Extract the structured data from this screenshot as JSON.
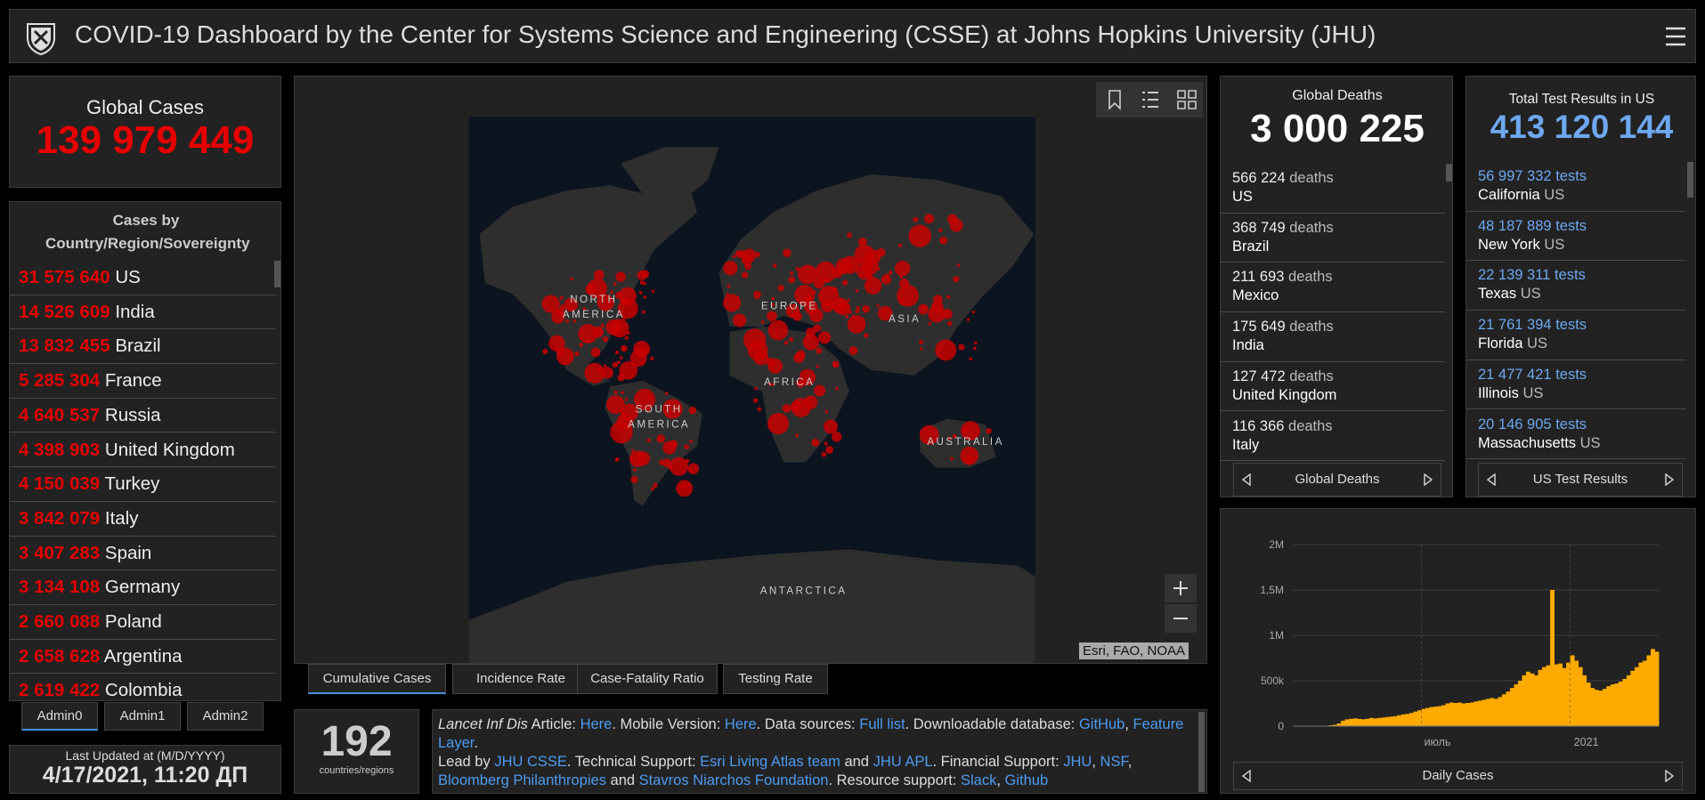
{
  "header": {
    "title": "COVID-19 Dashboard by the Center for Systems Science and Engineering (CSSE) at Johns Hopkins University (JHU)"
  },
  "global_cases": {
    "label": "Global Cases",
    "value": "139 979 449"
  },
  "cases_by_country": {
    "title": "Cases by Country/Region/Sovereignty",
    "rows": [
      {
        "value": "31 575 640",
        "name": "US"
      },
      {
        "value": "14 526 609",
        "name": "India"
      },
      {
        "value": "13 832 455",
        "name": "Brazil"
      },
      {
        "value": "5 285 304",
        "name": "France"
      },
      {
        "value": "4 640 537",
        "name": "Russia"
      },
      {
        "value": "4 398 903",
        "name": "United Kingdom"
      },
      {
        "value": "4 150 039",
        "name": "Turkey"
      },
      {
        "value": "3 842 079",
        "name": "Italy"
      },
      {
        "value": "3 407 283",
        "name": "Spain"
      },
      {
        "value": "3 134 108",
        "name": "Germany"
      },
      {
        "value": "2 660 088",
        "name": "Poland"
      },
      {
        "value": "2 658 628",
        "name": "Argentina"
      },
      {
        "value": "2 619 422",
        "name": "Colombia"
      }
    ]
  },
  "admin_tabs": [
    "Admin0",
    "Admin1",
    "Admin2"
  ],
  "last_updated": {
    "label": "Last Updated at (M/D/YYYY)",
    "value": "4/17/2021, 11:20 ДП"
  },
  "map": {
    "labels": [
      {
        "lines": [
          "NORTH",
          "AMERICA"
        ],
        "x": 0,
        "y": 0
      },
      {
        "lines": [
          "EUROPE"
        ]
      },
      {
        "lines": [
          "ASIA"
        ]
      },
      {
        "lines": [
          "AFRICA"
        ]
      },
      {
        "lines": [
          "SOUTH",
          "AMERICA"
        ]
      },
      {
        "lines": [
          "AUSTRALIA"
        ]
      },
      {
        "lines": [
          "ANTARCTICA"
        ]
      }
    ],
    "attribution": "Esri, FAO, NOAA",
    "tabs": [
      "Cumulative Cases",
      "Incidence Rate",
      "Case-Fatality Ratio",
      "Testing Rate"
    ]
  },
  "count": {
    "value": "192",
    "label": "countries/regions"
  },
  "info": {
    "lines": [
      [
        {
          "kind": "italic",
          "text": "Lancet Inf Dis"
        },
        {
          "kind": "text",
          "text": " Article: "
        },
        {
          "kind": "link",
          "text": "Here"
        },
        {
          "kind": "text",
          "text": ". Mobile Version: "
        },
        {
          "kind": "link",
          "text": "Here"
        },
        {
          "kind": "text",
          "text": ". Data sources: "
        },
        {
          "kind": "link",
          "text": "Full list"
        },
        {
          "kind": "text",
          "text": ". Downloadable database: "
        },
        {
          "kind": "link",
          "text": "GitHub"
        },
        {
          "kind": "text",
          "text": ", "
        },
        {
          "kind": "link",
          "text": "Feature Layer"
        },
        {
          "kind": "text",
          "text": "."
        }
      ],
      [
        {
          "kind": "text",
          "text": "Lead by "
        },
        {
          "kind": "link",
          "text": "JHU CSSE"
        },
        {
          "kind": "text",
          "text": ". Technical Support: "
        },
        {
          "kind": "link",
          "text": "Esri Living Atlas team"
        },
        {
          "kind": "text",
          "text": " and "
        },
        {
          "kind": "link",
          "text": "JHU APL"
        },
        {
          "kind": "text",
          "text": ". Financial Support: "
        },
        {
          "kind": "link",
          "text": "JHU"
        },
        {
          "kind": "text",
          "text": ", "
        },
        {
          "kind": "link",
          "text": "NSF"
        },
        {
          "kind": "text",
          "text": ", "
        },
        {
          "kind": "link",
          "text": "Bloomberg Philanthropies"
        },
        {
          "kind": "text",
          "text": " and "
        },
        {
          "kind": "link",
          "text": "Stavros Niarchos Foundation"
        },
        {
          "kind": "text",
          "text": ". Resource support: "
        },
        {
          "kind": "link",
          "text": "Slack"
        },
        {
          "kind": "text",
          "text": ", "
        },
        {
          "kind": "link",
          "text": "Github"
        }
      ]
    ]
  },
  "global_deaths": {
    "title": "Global Deaths",
    "value": "3 000 225",
    "rows": [
      {
        "value": "566 224",
        "unit": "deaths",
        "name": "US"
      },
      {
        "value": "368 749",
        "unit": "deaths",
        "name": "Brazil"
      },
      {
        "value": "211 693",
        "unit": "deaths",
        "name": "Mexico"
      },
      {
        "value": "175 649",
        "unit": "deaths",
        "name": "India"
      },
      {
        "value": "127 472",
        "unit": "deaths",
        "name": "United Kingdom"
      },
      {
        "value": "116 366",
        "unit": "deaths",
        "name": "Italy"
      }
    ],
    "nav": "Global Deaths"
  },
  "us_tests": {
    "title": "Total Test Results in US",
    "value": "413 120 144",
    "rows": [
      {
        "value": "56 997 332",
        "unit": "tests",
        "name": "California",
        "region": "US"
      },
      {
        "value": "48 187 889",
        "unit": "tests",
        "name": "New York",
        "region": "US"
      },
      {
        "value": "22 139 311",
        "unit": "tests",
        "name": "Texas",
        "region": "US"
      },
      {
        "value": "21 761 394",
        "unit": "tests",
        "name": "Florida",
        "region": "US"
      },
      {
        "value": "21 477 421",
        "unit": "tests",
        "name": "Illinois",
        "region": "US"
      },
      {
        "value": "20 146 905",
        "unit": "tests",
        "name": "Massachusetts",
        "region": "US"
      }
    ],
    "nav": "US Test Results"
  },
  "daily_nav": "Daily Cases",
  "chart_data": {
    "type": "bar",
    "color": "#ffaa00",
    "categories": [
      null,
      null,
      null,
      null,
      null,
      null,
      null,
      null,
      null,
      null,
      null,
      null,
      null,
      null,
      null,
      null,
      null,
      null,
      null,
      null,
      null,
      null,
      null,
      null,
      null,
      null,
      null,
      null,
      null,
      null,
      null,
      null,
      "июль",
      null,
      null,
      null,
      null,
      null,
      null,
      null,
      null,
      null,
      null,
      null,
      null,
      null,
      null,
      null,
      null,
      null,
      null,
      null,
      null,
      null,
      null,
      null,
      null,
      null,
      null,
      null,
      null,
      null,
      null,
      null,
      null,
      null,
      null,
      null,
      null,
      "2021",
      null,
      null,
      null,
      null,
      null,
      null,
      null,
      null,
      null,
      null,
      null,
      null,
      null,
      null,
      null,
      null,
      null,
      null,
      null,
      null,
      null
    ],
    "values": [
      0,
      1000,
      2000,
      2000,
      2000,
      1000,
      2000,
      2000,
      4000,
      10000,
      15000,
      30000,
      60000,
      75000,
      80000,
      85000,
      80000,
      75000,
      80000,
      90000,
      85000,
      90000,
      95000,
      100000,
      105000,
      110000,
      120000,
      130000,
      135000,
      145000,
      160000,
      175000,
      190000,
      200000,
      210000,
      215000,
      220000,
      230000,
      250000,
      260000,
      255000,
      260000,
      250000,
      255000,
      260000,
      270000,
      280000,
      290000,
      300000,
      310000,
      300000,
      320000,
      350000,
      380000,
      420000,
      460000,
      500000,
      560000,
      600000,
      580000,
      560000,
      620000,
      650000,
      670000,
      1500000,
      680000,
      690000,
      640000,
      700000,
      780000,
      720000,
      650000,
      560000,
      480000,
      420000,
      400000,
      390000,
      410000,
      440000,
      460000,
      470000,
      490000,
      520000,
      560000,
      610000,
      650000,
      700000,
      720000,
      780000,
      850000,
      820000
    ],
    "ylim": [
      0,
      2000000
    ],
    "yticks": [
      0,
      {
        "value": 500000,
        "label": "500k"
      },
      {
        "value": 1000000,
        "label": "1M"
      },
      {
        "value": 1500000,
        "label": "1,5M"
      },
      {
        "value": 2000000,
        "label": "2M"
      }
    ],
    "grid": true
  }
}
